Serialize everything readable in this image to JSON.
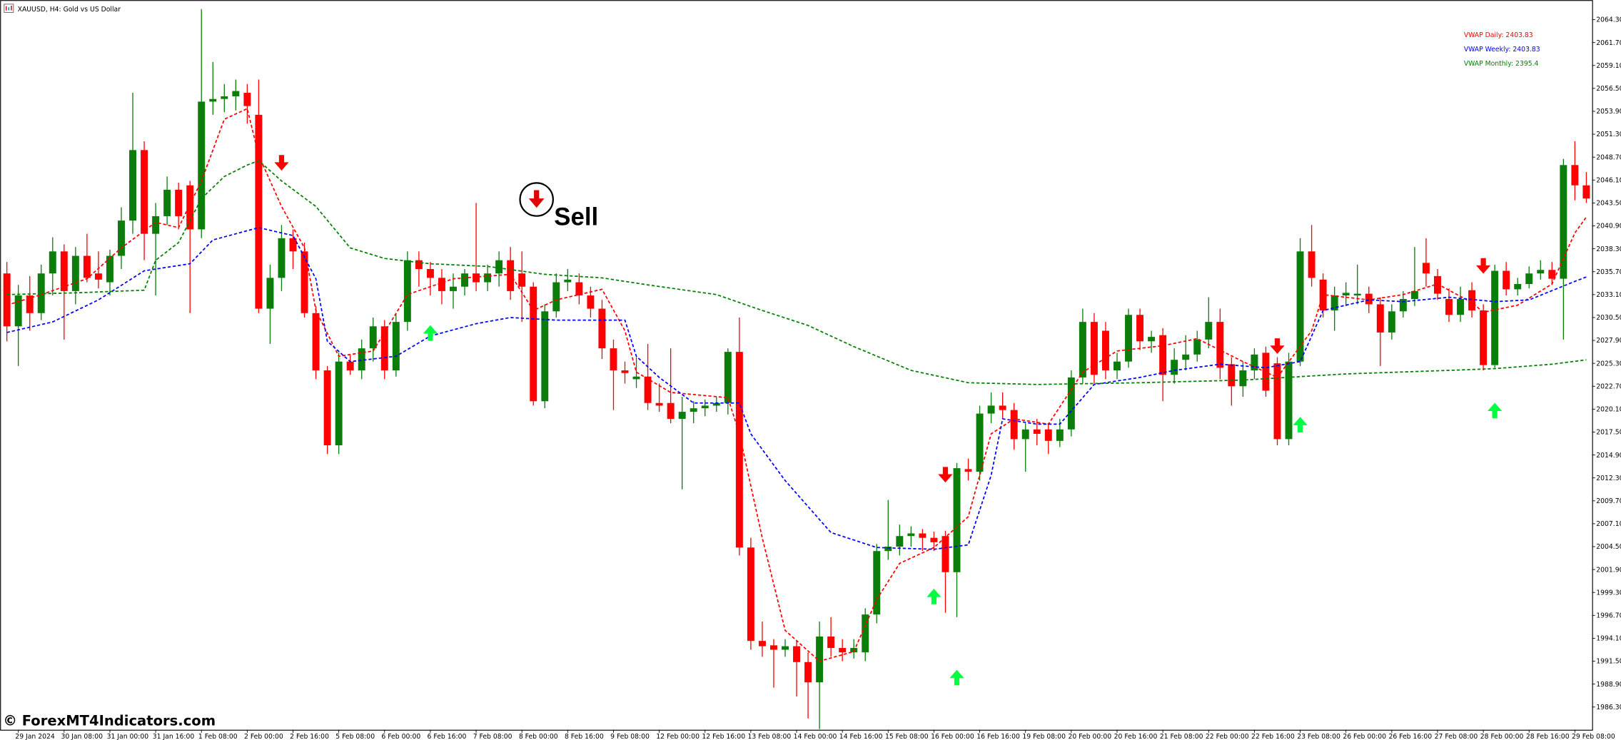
{
  "chart_data": {
    "type": "candlestick",
    "title": "XAUUSD, H4:  Gold vs US Dollar",
    "watermark": "© ForexMT4Indicators.com",
    "annotation": "Sell",
    "up_color": "#0a7d0a",
    "down_color": "#ff0000",
    "xlim": [
      -0.6,
      138.5
    ],
    "ylim": [
      1983.73,
      2066.53
    ],
    "xticks": [
      {
        "value": 1,
        "label": "29 Jan 2024"
      },
      {
        "value": 5,
        "label": "30 Jan 08:00"
      },
      {
        "value": 9,
        "label": "31 Jan 00:00"
      },
      {
        "value": 13,
        "label": "31 Jan 16:00"
      },
      {
        "value": 17,
        "label": "1 Feb 08:00"
      },
      {
        "value": 21,
        "label": "2 Feb 00:00"
      },
      {
        "value": 25,
        "label": "2 Feb 16:00"
      },
      {
        "value": 29,
        "label": "5 Feb 08:00"
      },
      {
        "value": 33,
        "label": "6 Feb 00:00"
      },
      {
        "value": 37,
        "label": "6 Feb 16:00"
      },
      {
        "value": 41,
        "label": "7 Feb 08:00"
      },
      {
        "value": 45,
        "label": "8 Feb 00:00"
      },
      {
        "value": 49,
        "label": "8 Feb 16:00"
      },
      {
        "value": 53,
        "label": "9 Feb 08:00"
      },
      {
        "value": 57,
        "label": "12 Feb 00:00"
      },
      {
        "value": 61,
        "label": "12 Feb 16:00"
      },
      {
        "value": 65,
        "label": "13 Feb 08:00"
      },
      {
        "value": 69,
        "label": "14 Feb 00:00"
      },
      {
        "value": 73,
        "label": "14 Feb 16:00"
      },
      {
        "value": 77,
        "label": "15 Feb 08:00"
      },
      {
        "value": 81,
        "label": "16 Feb 00:00"
      },
      {
        "value": 85,
        "label": "16 Feb 16:00"
      },
      {
        "value": 89,
        "label": "19 Feb 08:00"
      },
      {
        "value": 93,
        "label": "20 Feb 00:00"
      },
      {
        "value": 97,
        "label": "20 Feb 16:00"
      },
      {
        "value": 101,
        "label": "21 Feb 08:00"
      },
      {
        "value": 105,
        "label": "22 Feb 00:00"
      },
      {
        "value": 109,
        "label": "22 Feb 16:00"
      },
      {
        "value": 113,
        "label": "23 Feb 08:00"
      },
      {
        "value": 117,
        "label": "26 Feb 00:00"
      },
      {
        "value": 121,
        "label": "26 Feb 16:00"
      },
      {
        "value": 125,
        "label": "27 Feb 08:00"
      },
      {
        "value": 129,
        "label": "28 Feb 00:00"
      },
      {
        "value": 133,
        "label": "28 Feb 16:00"
      },
      {
        "value": 137,
        "label": "29 Feb 08:00"
      }
    ],
    "yticks": [
      {
        "value": 1986.3,
        "label": "1986.30"
      },
      {
        "value": 1988.9,
        "label": "1988.90"
      },
      {
        "value": 1991.5,
        "label": "1991.50"
      },
      {
        "value": 1994.1,
        "label": "1994.10"
      },
      {
        "value": 1996.7,
        "label": "1996.70"
      },
      {
        "value": 1999.3,
        "label": "1999.30"
      },
      {
        "value": 2001.9,
        "label": "2001.90"
      },
      {
        "value": 2004.5,
        "label": "2004.50"
      },
      {
        "value": 2007.1,
        "label": "2007.10"
      },
      {
        "value": 2009.7,
        "label": "2009.70"
      },
      {
        "value": 2012.3,
        "label": "2012.30"
      },
      {
        "value": 2014.9,
        "label": "2014.90"
      },
      {
        "value": 2017.5,
        "label": "2017.50"
      },
      {
        "value": 2020.1,
        "label": "2020.10"
      },
      {
        "value": 2022.7,
        "label": "2022.70"
      },
      {
        "value": 2025.3,
        "label": "2025.30"
      },
      {
        "value": 2027.9,
        "label": "2027.90"
      },
      {
        "value": 2030.5,
        "label": "2030.50"
      },
      {
        "value": 2033.1,
        "label": "2033.10"
      },
      {
        "value": 2035.7,
        "label": "2035.70"
      },
      {
        "value": 2038.3,
        "label": "2038.30"
      },
      {
        "value": 2040.9,
        "label": "2040.90"
      },
      {
        "value": 2043.5,
        "label": "2043.50"
      },
      {
        "value": 2046.1,
        "label": "2046.10"
      },
      {
        "value": 2048.7,
        "label": "2048.70"
      },
      {
        "value": 2051.3,
        "label": "2051.30"
      },
      {
        "value": 2053.9,
        "label": "2053.90"
      },
      {
        "value": 2056.5,
        "label": "2056.50"
      },
      {
        "value": 2059.1,
        "label": "2059.10"
      },
      {
        "value": 2061.7,
        "label": "2061.70"
      },
      {
        "value": 2064.3,
        "label": "2064.30"
      }
    ],
    "open": [
      2035.5,
      2029.5,
      2033.0,
      2031.0,
      2035.5,
      2038.0,
      2033.5,
      2037.5,
      2035.5,
      2034.5,
      2037.5,
      2041.5,
      2049.5,
      2040.0,
      2042.0,
      2045.0,
      2045.5,
      2040.5,
      2055.0,
      2055.3,
      2055.6,
      2056.0,
      2053.5,
      2031.5,
      2035.0,
      2039.5,
      2038.0,
      2031.0,
      2024.5,
      2016.0,
      2025.5,
      2024.5,
      2027.0,
      2029.5,
      2024.5,
      2030.0,
      2037.0,
      2036.0,
      2035.0,
      2033.5,
      2034.0,
      2035.5,
      2034.5,
      2035.5,
      2037.0,
      2035.5,
      2034.0,
      2021.0,
      2031.2,
      2034.5,
      2034.5,
      2033.0,
      2031.5,
      2027.0,
      2024.5,
      2023.5,
      2023.8,
      2020.8,
      2020.8,
      2019.0,
      2019.8,
      2020.2,
      2020.5,
      2020.8,
      2026.6,
      2004.4,
      1993.8,
      1993.3,
      1992.8,
      1993.2,
      1991.4,
      1989.1,
      1994.3,
      1993.0,
      1992.5,
      1992.5,
      1996.8,
      2004.0,
      2004.5,
      2005.7,
      2006.0,
      2005.5,
      2005.7,
      2001.6,
      2013.3,
      2013.0,
      2019.6,
      2020.5,
      2020.0,
      2016.7,
      2017.8,
      2017.8,
      2016.5,
      2017.8,
      2023.7,
      2030.0,
      2029.0,
      2024.5,
      2025.5,
      2030.8,
      2027.8,
      2028.5,
      2024.0,
      2025.7,
      2026.3,
      2028.0,
      2030.0,
      2025.2,
      2022.7,
      2024.5,
      2026.5,
      2025.3,
      2016.7,
      2025.5,
      2038.0,
      2034.8,
      2031.3,
      2033.0,
      2033.0,
      2033.2,
      2032.0,
      2028.8,
      2031.2,
      2032.6,
      2036.7,
      2035.2,
      2032.6,
      2030.8,
      2033.6,
      2031.3,
      2025.1,
      2035.8,
      2033.7,
      2034.3,
      2035.5,
      2035.9,
      2034.9,
      2047.8,
      2045.5
    ],
    "high": [
      2036.8,
      2034.2,
      2035.2,
      2036.5,
      2039.6,
      2038.8,
      2038.5,
      2040.0,
      2038.0,
      2038.2,
      2043.0,
      2056.0,
      2050.5,
      2043.5,
      2046.5,
      2045.8,
      2046.0,
      2065.5,
      2059.5,
      2057.0,
      2057.5,
      2057.0,
      2057.5,
      2036.5,
      2041.0,
      2040.5,
      2039.0,
      2031.8,
      2025.0,
      2026.5,
      2026.2,
      2028.0,
      2030.5,
      2030.2,
      2031.0,
      2038.0,
      2038.0,
      2036.8,
      2036.0,
      2035.5,
      2036.0,
      2043.5,
      2036.5,
      2038.0,
      2038.5,
      2038.0,
      2034.5,
      2032.0,
      2035.5,
      2036.0,
      2035.5,
      2034.0,
      2032.5,
      2028.0,
      2025.5,
      2026.0,
      2027.5,
      2023.0,
      2027.0,
      2021.5,
      2021.0,
      2021.2,
      2021.5,
      2027.0,
      2030.5,
      2005.5,
      1996.0,
      1994.0,
      1994.0,
      1993.8,
      1992.5,
      1996.0,
      1996.5,
      1994.0,
      1994.0,
      1997.5,
      2004.8,
      2009.8,
      2007.0,
      2006.8,
      2006.5,
      2006.2,
      2006.3,
      2014.0,
      2014.5,
      2020.5,
      2022.0,
      2022.0,
      2020.8,
      2018.5,
      2019.0,
      2018.5,
      2019.0,
      2024.5,
      2031.5,
      2031.0,
      2030.0,
      2026.5,
      2031.5,
      2031.5,
      2029.0,
      2029.3,
      2027.0,
      2028.5,
      2029.0,
      2032.8,
      2031.5,
      2026.0,
      2025.5,
      2027.0,
      2027.2,
      2026.0,
      2026.5,
      2039.5,
      2041.0,
      2035.5,
      2034.0,
      2034.5,
      2036.5,
      2034.0,
      2032.8,
      2032.0,
      2033.5,
      2038.5,
      2039.5,
      2036.0,
      2033.8,
      2034.0,
      2034.5,
      2032.0,
      2036.5,
      2036.8,
      2035.0,
      2036.3,
      2037.0,
      2036.8,
      2048.5,
      2050.5,
      2047.0
    ],
    "low": [
      2027.8,
      2025.0,
      2029.0,
      2030.2,
      2033.0,
      2028.0,
      2032.0,
      2034.5,
      2033.8,
      2033.0,
      2036.0,
      2040.0,
      2037.0,
      2033.0,
      2041.0,
      2040.5,
      2031.0,
      2039.5,
      2053.5,
      2053.8,
      2054.0,
      2052.5,
      2031.0,
      2027.5,
      2033.5,
      2036.0,
      2030.5,
      2023.5,
      2015.0,
      2015.0,
      2024.0,
      2023.5,
      2025.5,
      2023.5,
      2023.8,
      2029.0,
      2034.0,
      2033.0,
      2032.0,
      2031.5,
      2033.0,
      2033.5,
      2033.5,
      2034.0,
      2032.5,
      2030.0,
      2020.5,
      2020.2,
      2030.5,
      2033.5,
      2032.0,
      2030.5,
      2025.8,
      2020.0,
      2023.0,
      2022.5,
      2020.0,
      2019.8,
      2018.5,
      2011.0,
      2018.5,
      2019.3,
      2019.8,
      2019.5,
      2003.5,
      1992.8,
      1992.0,
      1988.5,
      1992.0,
      1987.5,
      1985.0,
      1983.8,
      1992.0,
      1991.5,
      1991.8,
      1991.5,
      1995.8,
      2003.0,
      2003.5,
      2004.5,
      2004.0,
      2004.0,
      1997.0,
      1996.5,
      2012.0,
      2012.0,
      2018.5,
      2019.0,
      2015.5,
      2013.0,
      2016.0,
      2015.0,
      2015.8,
      2017.0,
      2023.0,
      2023.0,
      2023.5,
      2023.5,
      2024.8,
      2026.8,
      2026.5,
      2021.0,
      2023.0,
      2024.5,
      2025.5,
      2027.0,
      2023.5,
      2020.5,
      2021.5,
      2023.5,
      2021.5,
      2016.0,
      2016.0,
      2025.0,
      2034.0,
      2030.5,
      2029.0,
      2031.8,
      2032.0,
      2031.0,
      2025.0,
      2028.0,
      2030.5,
      2031.8,
      2034.0,
      2032.5,
      2030.0,
      2030.0,
      2030.5,
      2024.5,
      2024.8,
      2033.0,
      2033.0,
      2033.8,
      2034.8,
      2034.2,
      2028.0,
      2043.8,
      2043.5
    ],
    "close": [
      2029.5,
      2033.0,
      2031.0,
      2035.5,
      2038.0,
      2033.5,
      2037.5,
      2035.0,
      2034.8,
      2037.5,
      2041.5,
      2049.5,
      2040.0,
      2042.0,
      2045.0,
      2042.0,
      2040.5,
      2055.0,
      2055.3,
      2055.6,
      2056.2,
      2054.5,
      2031.5,
      2035.0,
      2039.5,
      2038.0,
      2031.0,
      2024.5,
      2016.0,
      2025.5,
      2024.5,
      2027.0,
      2029.5,
      2024.5,
      2030.0,
      2037.0,
      2036.0,
      2035.0,
      2033.5,
      2034.0,
      2035.5,
      2034.5,
      2035.5,
      2037.0,
      2033.5,
      2034.0,
      2021.0,
      2031.2,
      2034.5,
      2034.8,
      2033.0,
      2031.5,
      2027.0,
      2024.5,
      2024.2,
      2023.8,
      2020.8,
      2020.5,
      2019.0,
      2019.8,
      2020.2,
      2020.5,
      2020.8,
      2026.6,
      2004.4,
      1993.8,
      1993.2,
      1992.8,
      1993.2,
      1991.4,
      1989.1,
      1994.3,
      1993.0,
      1992.5,
      1993.0,
      1996.8,
      2004.0,
      2004.5,
      2005.7,
      2006.0,
      2005.5,
      2005.0,
      2001.6,
      2013.4,
      2013.0,
      2019.6,
      2020.5,
      2020.0,
      2016.7,
      2017.8,
      2017.3,
      2016.5,
      2017.8,
      2023.7,
      2030.0,
      2024.0,
      2024.5,
      2025.5,
      2030.8,
      2027.8,
      2028.3,
      2024.0,
      2025.7,
      2026.3,
      2028.0,
      2030.0,
      2024.8,
      2022.7,
      2024.5,
      2026.3,
      2022.2,
      2016.7,
      2025.5,
      2038.0,
      2035.0,
      2031.3,
      2033.0,
      2033.3,
      2033.2,
      2032.0,
      2028.8,
      2031.2,
      2032.6,
      2033.5,
      2035.5,
      2033.2,
      2030.8,
      2032.6,
      2031.3,
      2025.1,
      2035.8,
      2033.7,
      2034.3,
      2035.5,
      2035.9,
      2034.9,
      2047.8,
      2045.5,
      2044.0
    ],
    "series": [
      {
        "name": "VWAP Daily: 2403.83",
        "color": "#ff0000",
        "x": [
          0,
          3,
          7,
          10,
          13,
          15,
          17,
          19,
          21,
          22,
          24,
          26,
          27,
          29,
          32,
          35,
          39,
          44,
          46,
          48,
          52,
          54,
          55,
          58,
          63,
          64,
          66,
          68,
          71,
          74,
          76,
          78,
          81,
          84,
          86,
          88,
          91,
          94,
          97,
          101,
          104,
          108,
          111,
          114,
          115,
          119,
          122,
          125,
          128,
          129,
          132,
          135,
          137,
          138
        ],
        "values": [
          2031.9,
          2033.1,
          2034.9,
          2038.4,
          2041.3,
          2040.7,
          2046.0,
          2053.0,
          2054.2,
          2048.9,
          2043.1,
          2038.4,
          2031.3,
          2026.1,
          2026.7,
          2033.1,
          2034.9,
          2035.4,
          2031.3,
          2032.5,
          2033.7,
          2029.0,
          2024.3,
          2022.0,
          2021.4,
          2017.3,
          2005.5,
          1995.0,
          1991.5,
          1992.6,
          1998.5,
          2002.6,
          2004.4,
          2007.9,
          2017.3,
          2019.0,
          2018.4,
          2024.3,
          2026.7,
          2027.3,
          2028.1,
          2025.5,
          2023.7,
          2029.0,
          2033.1,
          2032.5,
          2033.1,
          2034.3,
          2032.2,
          2031.1,
          2031.9,
          2034.3,
          2040.1,
          2041.9
        ]
      },
      {
        "name": "VWAP Weekly: 2403.83",
        "color": "#0000ff",
        "x": [
          0,
          4,
          8,
          12,
          16,
          18,
          22,
          25,
          27,
          28,
          30,
          34,
          37,
          41,
          44,
          48,
          54,
          55,
          57,
          60,
          64,
          65,
          68,
          72,
          76,
          81,
          84,
          86,
          87,
          90,
          92,
          95,
          99,
          102,
          106,
          110,
          113,
          115,
          119,
          122,
          126,
          130,
          133,
          137,
          138
        ],
        "values": [
          2028.8,
          2030.0,
          2032.5,
          2035.8,
          2036.6,
          2039.3,
          2040.7,
          2039.8,
          2034.9,
          2027.8,
          2025.5,
          2026.1,
          2028.4,
          2029.8,
          2030.5,
          2030.2,
          2030.2,
          2026.1,
          2023.7,
          2020.8,
          2020.8,
          2017.3,
          2012.0,
          2006.1,
          2004.4,
          2004.2,
          2004.7,
          2012.6,
          2019.0,
          2018.4,
          2018.4,
          2022.9,
          2023.7,
          2024.5,
          2025.2,
          2024.8,
          2025.5,
          2031.3,
          2032.5,
          2032.3,
          2032.8,
          2032.3,
          2032.5,
          2034.6,
          2035.1
        ]
      },
      {
        "name": "VWAP Monthly: 2395.4",
        "color": "#008000",
        "x": [
          0,
          6,
          12,
          13,
          15,
          17,
          19,
          21,
          22,
          24,
          27,
          30,
          33,
          37,
          42,
          47,
          52,
          56,
          62,
          66,
          70,
          74,
          79,
          84,
          90,
          99,
          108,
          117,
          126,
          130,
          135,
          138
        ],
        "values": [
          2033.1,
          2033.3,
          2033.6,
          2037.0,
          2039.0,
          2044.0,
          2046.5,
          2047.8,
          2048.3,
          2046.0,
          2043.1,
          2038.4,
          2037.2,
          2036.6,
          2036.3,
          2035.4,
          2035.0,
          2034.2,
          2033.1,
          2031.3,
          2029.6,
          2027.2,
          2024.5,
          2023.1,
          2022.9,
          2023.1,
          2023.4,
          2024.1,
          2024.5,
          2024.7,
          2025.2,
          2025.7
        ]
      }
    ],
    "signals": {
      "sell": {
        "color": "#ff0000",
        "x": [
          24,
          82,
          111,
          129
        ],
        "values": [
          2048.0,
          2012.6,
          2027.2,
          2036.3
        ]
      },
      "buy": {
        "color": "#00ff40",
        "x": [
          37,
          81,
          83,
          113,
          130
        ],
        "values": [
          2028.8,
          1998.9,
          1989.7,
          2018.4,
          2020.0
        ]
      }
    }
  }
}
